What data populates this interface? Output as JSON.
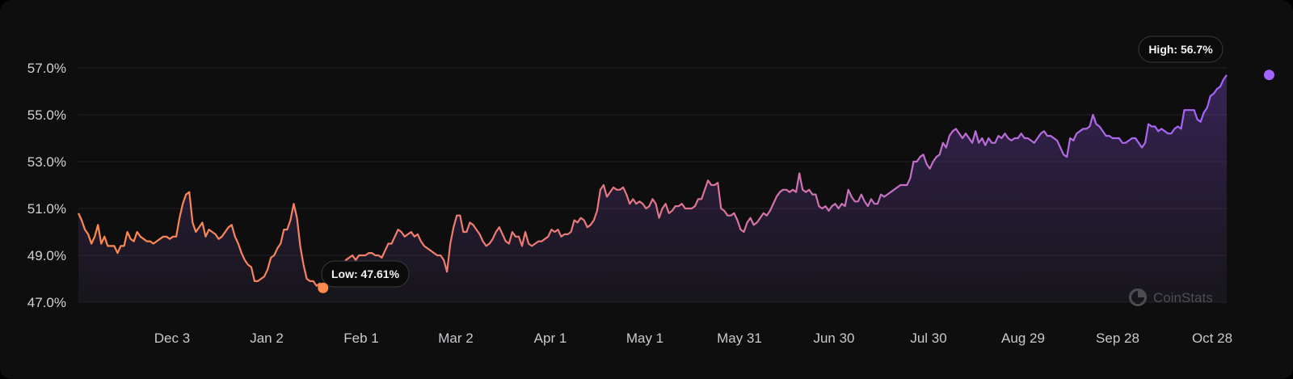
{
  "chart_data": {
    "type": "area",
    "ylim": [
      47.0,
      57.0
    ],
    "y_ticks": [
      47.0,
      49.0,
      51.0,
      53.0,
      55.0,
      57.0
    ],
    "y_tick_labels": [
      "47.0%",
      "49.0%",
      "51.0%",
      "53.0%",
      "55.0%",
      "57.0%"
    ],
    "x_tick_labels": [
      "Dec 3",
      "Jan 2",
      "Feb 1",
      "Mar 2",
      "Apr 1",
      "May 1",
      "May 31",
      "Jun 30",
      "Jul 30",
      "Aug 29",
      "Sep 28",
      "Oct 28"
    ],
    "series": [
      {
        "values": [
          50.8,
          50.5,
          50.1,
          49.9,
          49.5,
          49.8,
          50.3,
          49.5,
          49.8,
          49.4,
          49.4,
          49.4,
          49.1,
          49.4,
          49.4,
          50.0,
          49.7,
          49.6,
          50.0,
          49.8,
          49.7,
          49.6,
          49.6,
          49.5,
          49.6,
          49.7,
          49.8,
          49.8,
          49.7,
          49.8,
          49.8,
          50.6,
          51.2,
          51.6,
          51.7,
          50.4,
          50.0,
          50.2,
          50.4,
          49.8,
          50.1,
          50.0,
          49.9,
          49.7,
          49.8,
          50.0,
          50.2,
          50.3,
          49.8,
          49.5,
          49.1,
          48.8,
          48.6,
          48.5,
          47.9,
          47.9,
          48.0,
          48.1,
          48.4,
          48.9,
          49.0,
          49.3,
          49.5,
          50.1,
          50.1,
          50.5,
          51.2,
          50.6,
          49.4,
          48.6,
          48.0,
          47.9,
          47.9,
          47.7,
          47.8,
          47.6,
          47.7,
          47.9,
          48.1,
          48.3,
          48.4,
          48.6,
          48.8,
          48.9,
          49.0,
          48.8,
          49.0,
          49.0,
          49.0,
          49.1,
          49.1,
          49.0,
          49.0,
          48.9,
          49.2,
          49.5,
          49.5,
          49.8,
          50.1,
          50.0,
          49.8,
          49.9,
          50.0,
          49.8,
          49.9,
          49.6,
          49.4,
          49.3,
          49.2,
          49.1,
          49.0,
          49.0,
          48.8,
          48.3,
          49.5,
          50.2,
          50.7,
          50.7,
          50.0,
          50.0,
          50.4,
          50.3,
          50.1,
          49.9,
          49.6,
          49.4,
          49.5,
          49.7,
          50.0,
          50.2,
          49.9,
          49.6,
          49.5,
          50.0,
          49.8,
          49.8,
          49.4,
          50.0,
          49.5,
          49.4,
          49.5,
          49.6,
          49.6,
          49.7,
          49.8,
          50.1,
          50.0,
          50.1,
          49.8,
          49.9,
          49.9,
          50.0,
          50.5,
          50.4,
          50.6,
          50.5,
          50.2,
          50.3,
          50.5,
          50.9,
          51.8,
          52.0,
          51.5,
          51.7,
          51.9,
          51.8,
          51.8,
          51.9,
          51.6,
          51.2,
          51.4,
          51.2,
          51.3,
          51.2,
          51.0,
          51.1,
          51.4,
          51.2,
          50.6,
          51.0,
          51.2,
          50.8,
          50.9,
          51.1,
          51.1,
          51.2,
          51.0,
          51.0,
          51.0,
          51.1,
          51.4,
          51.4,
          51.8,
          52.2,
          52.0,
          52.0,
          52.1,
          51.0,
          50.9,
          50.7,
          50.7,
          50.8,
          50.5,
          50.1,
          50.0,
          50.4,
          50.6,
          50.3,
          50.4,
          50.6,
          50.8,
          50.7,
          50.9,
          51.2,
          51.5,
          51.7,
          51.8,
          51.8,
          51.7,
          51.8,
          51.7,
          52.5,
          51.8,
          51.7,
          51.8,
          51.6,
          51.6,
          51.1,
          51.0,
          51.1,
          50.9,
          51.1,
          51.2,
          51.0,
          51.2,
          51.1,
          51.8,
          51.5,
          51.3,
          51.3,
          51.6,
          51.3,
          51.1,
          51.4,
          51.2,
          51.2,
          51.6,
          51.5,
          51.6,
          51.7,
          51.8,
          51.9,
          52.0,
          52.0,
          52.0,
          52.3,
          53.0,
          53.0,
          53.2,
          53.3,
          52.9,
          52.7,
          53.0,
          53.2,
          53.3,
          53.8,
          53.6,
          54.1,
          54.3,
          54.4,
          54.2,
          54.0,
          54.2,
          54.0,
          53.8,
          54.3,
          53.8,
          54.0,
          53.7,
          54.0,
          53.8,
          53.8,
          54.1,
          54.0,
          54.2,
          54.0,
          53.9,
          54.0,
          54.0,
          54.2,
          54.0,
          54.0,
          53.9,
          53.8,
          54.0,
          54.2,
          54.3,
          54.1,
          54.1,
          54.0,
          53.9,
          53.6,
          53.3,
          53.2,
          54.0,
          53.9,
          54.2,
          54.3,
          54.4,
          54.4,
          54.5,
          55.0,
          54.6,
          54.5,
          54.3,
          54.1,
          54.1,
          54.0,
          54.0,
          54.0,
          53.8,
          53.8,
          53.9,
          54.0,
          54.0,
          53.8,
          53.6,
          53.8,
          54.6,
          54.5,
          54.5,
          54.3,
          54.4,
          54.3,
          54.2,
          54.2,
          54.4,
          54.5,
          54.4,
          55.2,
          55.2,
          55.2,
          55.2,
          54.8,
          54.7,
          55.1,
          55.3,
          55.8,
          55.9,
          56.1,
          56.2,
          56.5,
          56.7
        ]
      }
    ],
    "low": {
      "label": "Low: 47.61%",
      "value": 47.61,
      "index": 75
    },
    "high": {
      "label": "High: 56.7%",
      "value": 56.7,
      "index": 365
    },
    "colors": {
      "start": "#ff8a4c",
      "end": "#a263ff",
      "background": "#0e0e0f",
      "grid": "#232327"
    }
  },
  "watermark": {
    "text": "CoinStats"
  }
}
